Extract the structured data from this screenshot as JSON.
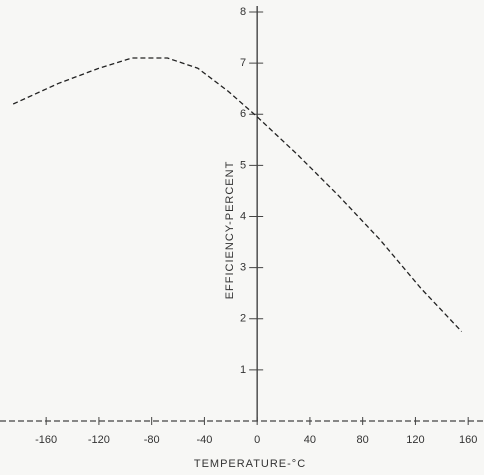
{
  "chart_data": {
    "type": "line",
    "x_label": "TEMPERATURE-°C",
    "y_label": "EFFICIENCY-PERCENT",
    "x": [
      -185,
      -151,
      -120,
      -95,
      -68,
      -45,
      -22,
      0,
      31,
      62,
      93,
      124,
      155
    ],
    "values": [
      6.2,
      6.6,
      6.9,
      7.1,
      7.1,
      6.9,
      6.45,
      5.95,
      5.2,
      4.4,
      3.55,
      2.6,
      1.75
    ],
    "color": "#222222",
    "xlim": [
      -195,
      172
    ],
    "ylim": [
      0,
      8
    ],
    "xticks": [
      -160,
      -120,
      -80,
      -40,
      0,
      40,
      80,
      120,
      160
    ],
    "yticks": [
      1,
      2,
      3,
      4,
      5,
      6,
      7,
      8
    ]
  }
}
